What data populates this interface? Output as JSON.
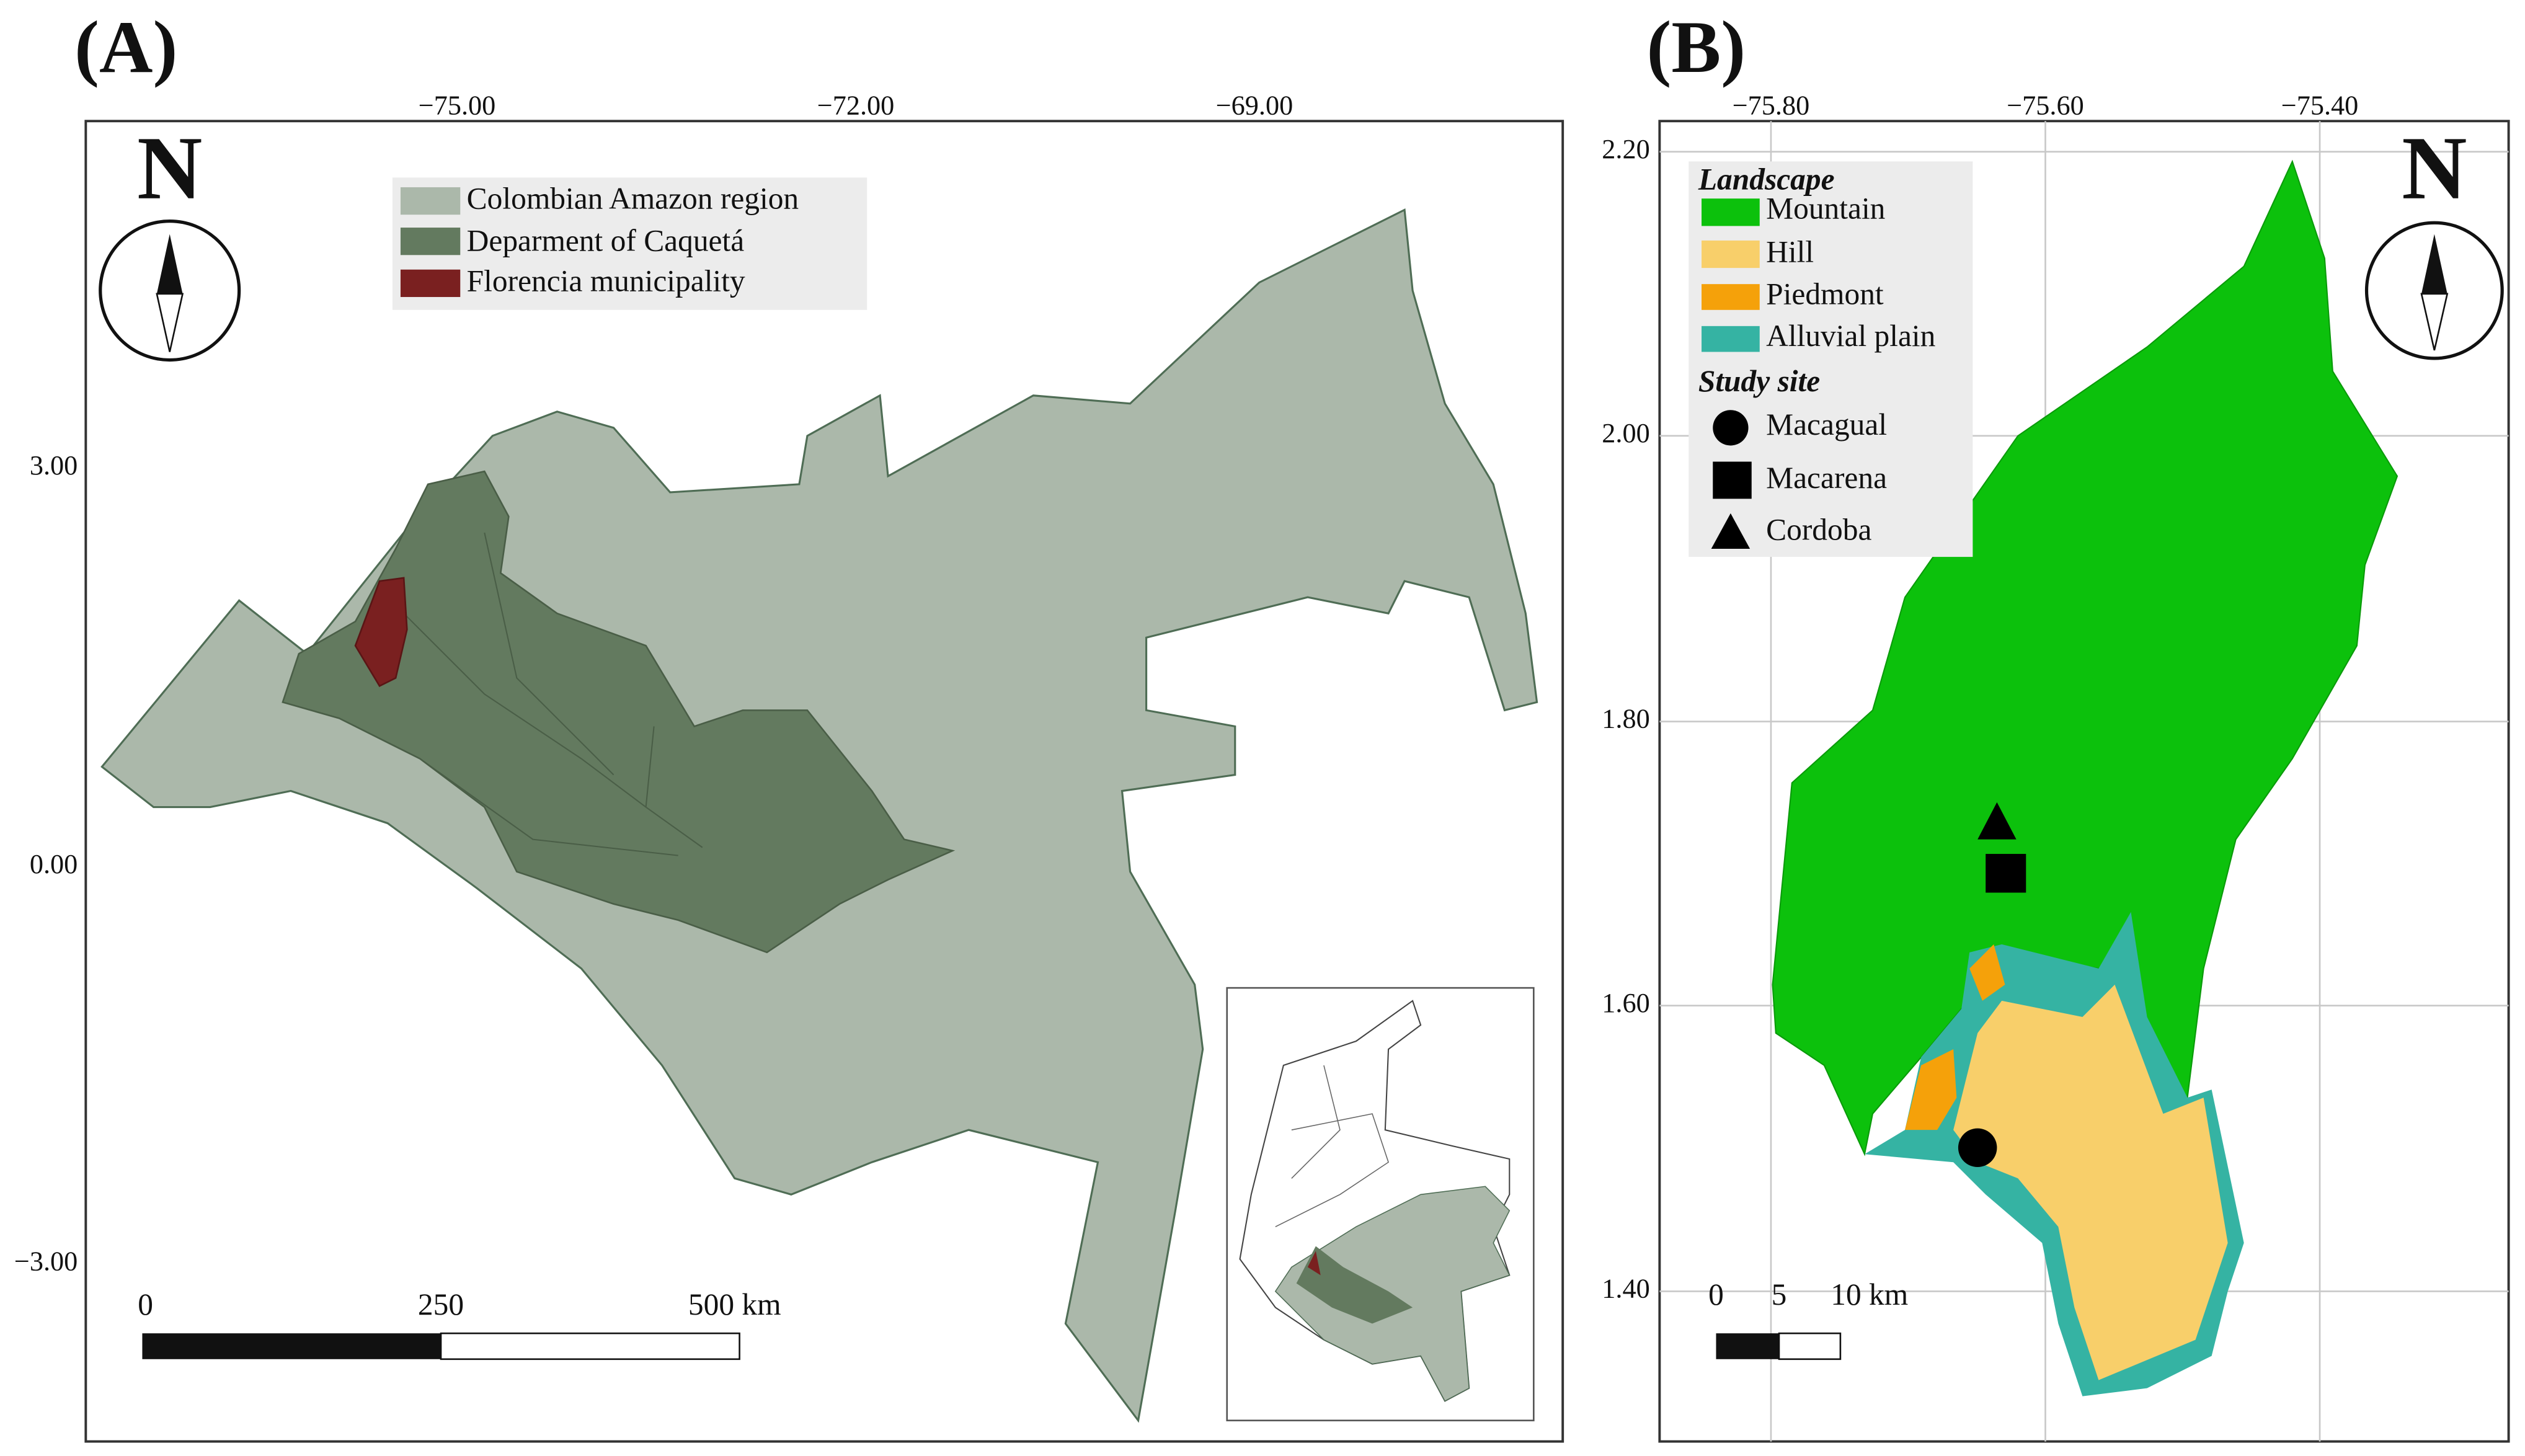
{
  "panel_a": {
    "label": "(A)",
    "north": "N",
    "x_ticks": [
      "−75.00",
      "−72.00",
      "−69.00"
    ],
    "y_ticks": [
      "3.00",
      "0.00",
      "−3.00"
    ],
    "legend": [
      "Colombian Amazon region",
      "Deparment of Caquetá",
      "Florencia municipality"
    ],
    "scale_bar": [
      "0",
      "250",
      "500 km"
    ]
  },
  "panel_b": {
    "label": "(B)",
    "north": "N",
    "x_ticks": [
      "−75.80",
      "−75.60",
      "−75.40"
    ],
    "y_ticks": [
      "2.20",
      "2.00",
      "1.80",
      "1.60",
      "1.40"
    ],
    "landscape_title": "Landscape",
    "landscape": [
      "Mountain",
      "Hill",
      "Piedmont",
      "Alluvial plain"
    ],
    "study_site_title": "Study site",
    "study_sites": [
      "Macagual",
      "Macarena",
      "Cordoba"
    ],
    "scale_bar": [
      "0",
      "5",
      "10 km"
    ]
  }
}
